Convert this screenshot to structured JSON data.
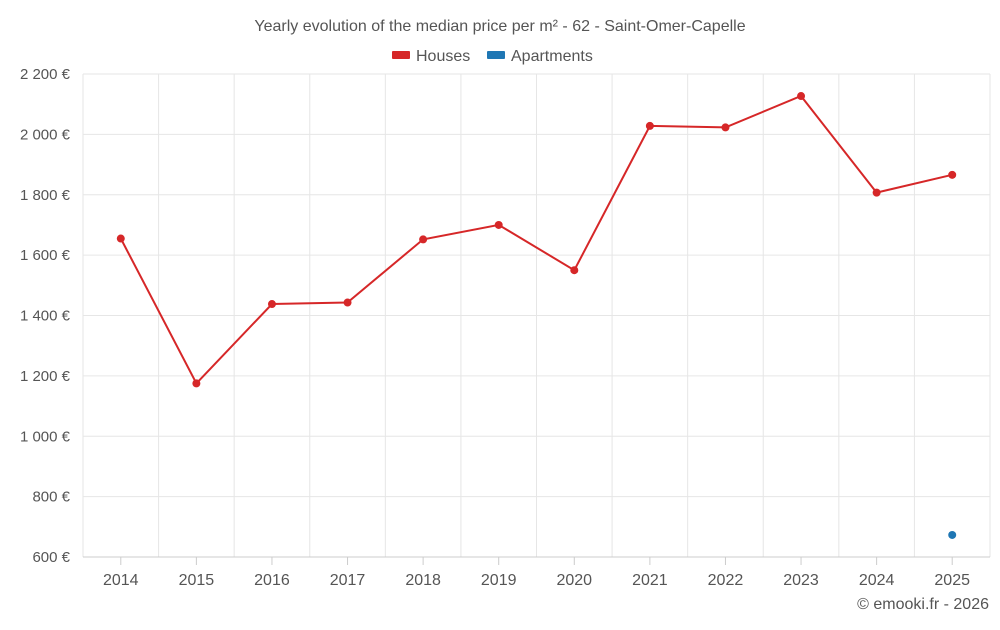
{
  "chart_data": {
    "type": "line",
    "title": "Yearly evolution of the median price per m² - 62 - Saint-Omer-Capelle",
    "xlabel": "",
    "ylabel": "",
    "categories": [
      "2014",
      "2015",
      "2016",
      "2017",
      "2018",
      "2019",
      "2020",
      "2021",
      "2022",
      "2023",
      "2024",
      "2025"
    ],
    "ylim": [
      600,
      2200
    ],
    "yticks": [
      600,
      800,
      1000,
      1200,
      1400,
      1600,
      1800,
      2000,
      2200
    ],
    "ytick_labels": [
      "600 €",
      "800 €",
      "1 000 €",
      "1 200 €",
      "1 400 €",
      "1 600 €",
      "1 800 €",
      "2 000 €",
      "2 200 €"
    ],
    "grid": true,
    "legend_position": "top-center",
    "series": [
      {
        "name": "Houses",
        "color": "#d62728",
        "values": [
          1655,
          1175,
          1438,
          1443,
          1652,
          1700,
          1550,
          2028,
          2023,
          2127,
          1807,
          1866
        ]
      },
      {
        "name": "Apartments",
        "color": "#1f77b4",
        "values": [
          null,
          null,
          null,
          null,
          null,
          null,
          null,
          null,
          null,
          null,
          null,
          673
        ]
      }
    ],
    "credit": "© emooki.fr - 2026"
  }
}
